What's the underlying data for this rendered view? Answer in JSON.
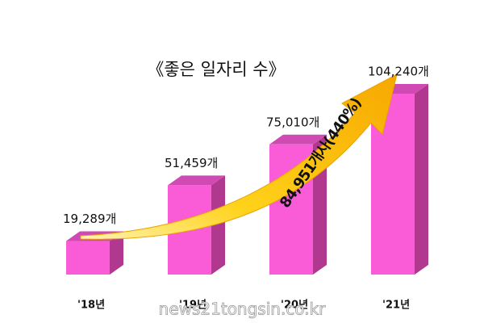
{
  "chart_data": {
    "type": "bar3d",
    "title": "《좋은 일자리 수》",
    "categories": [
      "'18년",
      "'19년",
      "'20년",
      "'21년"
    ],
    "values": [
      19289,
      51459,
      75010,
      104240
    ],
    "value_labels": [
      "19,289개",
      "51,459개",
      "75,010개",
      "104,240개"
    ],
    "color": "#f95cd6",
    "annotation": "84,951개사(440%)",
    "watermark": "news21tongsin.co.kr"
  }
}
